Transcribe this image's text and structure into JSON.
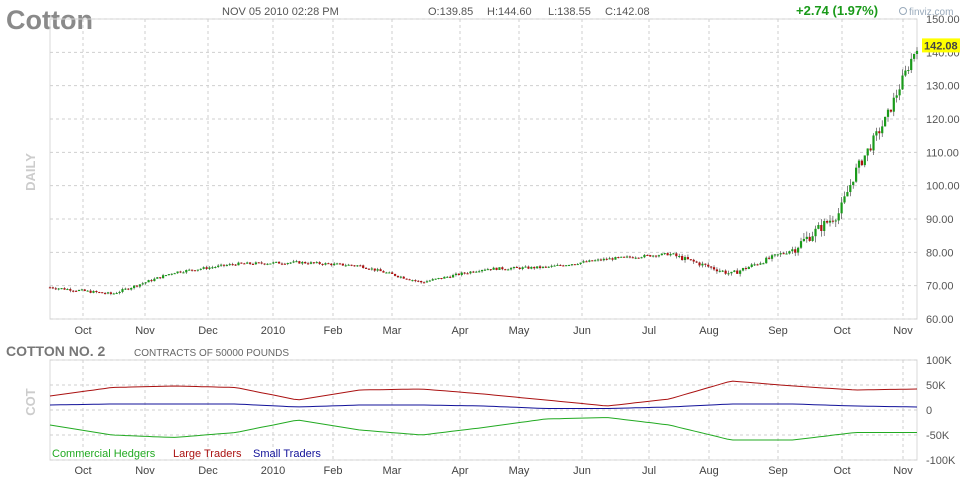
{
  "header": {
    "symbol": "Cotton",
    "datetime": "NOV 05 2010 02:28 PM",
    "open": "O:139.85",
    "high": "H:144.60",
    "low": "L:138.55",
    "close": "C:142.08",
    "change": "+2.74 (1.97%)",
    "brand": "finviz.com",
    "last_price": "142.08"
  },
  "colors": {
    "up": "#1a9a1a",
    "down": "#b01010",
    "highlight": "#ffff00",
    "grid": "#cfcfcf",
    "commercial": "#22aa22",
    "large": "#aa1111",
    "small": "#111199"
  },
  "chart_data": [
    {
      "type": "line",
      "y_axis_label": "DAILY",
      "ylim": [
        60,
        150
      ],
      "yticks": [
        "60.00",
        "70.00",
        "80.00",
        "90.00",
        "100.00",
        "110.00",
        "120.00",
        "130.00",
        "140.00",
        "150.00"
      ],
      "x_labels": [
        "Oct",
        "Nov",
        "Dec",
        "2010",
        "Feb",
        "Mar",
        "Apr",
        "May",
        "Jun",
        "Jul",
        "Aug",
        "Sep",
        "Oct",
        "Nov"
      ],
      "grid": true,
      "series": [
        {
          "x": [
            0,
            2,
            4,
            6,
            8,
            10,
            12,
            14,
            16,
            18,
            20,
            22,
            24,
            25.5,
            26,
            27,
            28
          ],
          "y": [
            69.5,
            67.5,
            74,
            76.5,
            77,
            76,
            71,
            75,
            75.5,
            78,
            79.5,
            73.5,
            81,
            92,
            104,
            120,
            142
          ]
        }
      ]
    },
    {
      "type": "line",
      "title": "COTTON NO. 2",
      "subtitle": "CONTRACTS OF 50000 POUNDS",
      "y_axis_label": "COT",
      "ylim": [
        -100000,
        100000
      ],
      "yticks": [
        "100K",
        "50K",
        "0",
        "-50K",
        "-100K"
      ],
      "x_labels": [
        "Oct",
        "Nov",
        "Dec",
        "2010",
        "Feb",
        "Mar",
        "Apr",
        "May",
        "Jun",
        "Jul",
        "Aug",
        "Sep",
        "Oct",
        "Nov"
      ],
      "grid": true,
      "series": [
        {
          "name": "Commercial Hedgers",
          "x": [
            0,
            2,
            4,
            6,
            8,
            10,
            12,
            14,
            16,
            18,
            20,
            22,
            24,
            26,
            28
          ],
          "y": [
            -30000,
            -50000,
            -55000,
            -45000,
            -20000,
            -40000,
            -50000,
            -35000,
            -18000,
            -15000,
            -30000,
            -60000,
            -60000,
            -45000,
            -45000
          ]
        },
        {
          "name": "Large Traders",
          "x": [
            0,
            2,
            4,
            6,
            8,
            10,
            12,
            14,
            16,
            18,
            20,
            22,
            24,
            26,
            28
          ],
          "y": [
            28000,
            45000,
            48000,
            45000,
            20000,
            40000,
            42000,
            32000,
            20000,
            8000,
            22000,
            58000,
            48000,
            40000,
            42000
          ]
        },
        {
          "name": "Small Traders",
          "x": [
            0,
            2,
            4,
            6,
            8,
            10,
            12,
            14,
            16,
            18,
            20,
            22,
            24,
            26,
            28
          ],
          "y": [
            10000,
            12000,
            12000,
            12000,
            6000,
            10000,
            10000,
            8000,
            3000,
            3000,
            6000,
            12000,
            12000,
            8000,
            6000
          ]
        }
      ]
    }
  ]
}
